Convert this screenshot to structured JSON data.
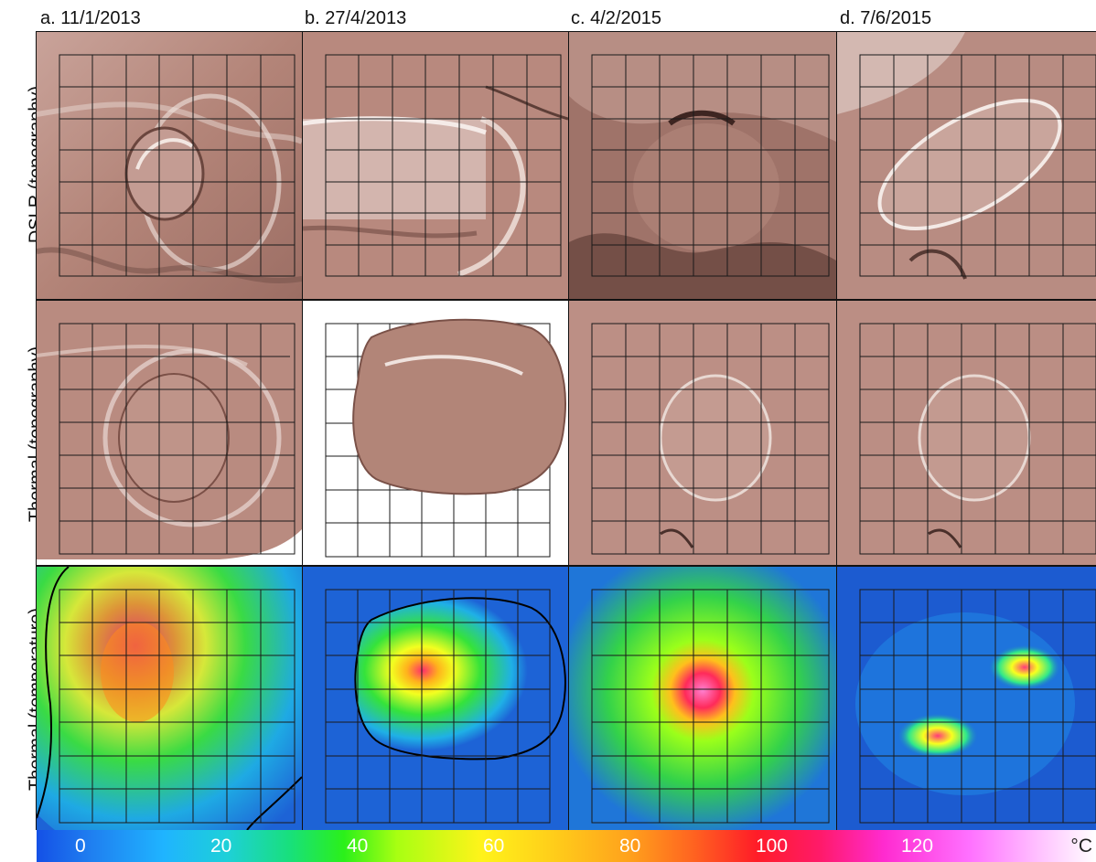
{
  "columns": [
    {
      "label": "a. 11/1/2013"
    },
    {
      "label": "b. 27/4/2013"
    },
    {
      "label": "c. 4/2/2015"
    },
    {
      "label": "d. 7/6/2015"
    }
  ],
  "rows": [
    {
      "label": "DSLR (topography)"
    },
    {
      "label": "Thermal (topography)"
    },
    {
      "label": "Thermal (temperature)"
    }
  ],
  "colorbar": {
    "ticks": [
      "0",
      "20",
      "40",
      "60",
      "80",
      "100",
      "120"
    ],
    "unit": "°C"
  },
  "colors": {
    "topography": "#b58a80",
    "temperature_background": "#1d63d6",
    "grid": "#1a1a1a"
  }
}
